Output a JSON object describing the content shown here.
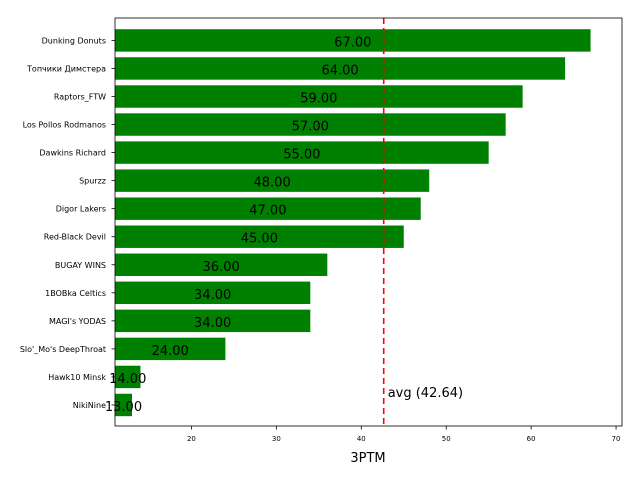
{
  "chart_data": {
    "type": "bar",
    "orientation": "horizontal",
    "title": "",
    "xlabel": "3PTM",
    "ylabel": "",
    "categories": [
      "Dunking Donuts",
      "Топчики Димстера",
      "Raptors_FTW",
      "Los Pollos Rodmanos",
      "Dawkins Richard",
      "Spurzz",
      "Digor Lakers",
      "Red-Black Devil",
      "BUGAY WINS",
      "1BOBka Celtics",
      "MAGI's YODAS",
      "Slo'_Mo's DeepThroat",
      "Hawk10 Minsk",
      "NikiNine"
    ],
    "values": [
      67,
      64,
      59,
      57,
      55,
      48,
      47,
      45,
      36,
      34,
      34,
      24,
      14,
      13
    ],
    "value_labels": [
      "67.00",
      "64.00",
      "59.00",
      "57.00",
      "55.00",
      "48.00",
      "47.00",
      "45.00",
      "36.00",
      "34.00",
      "34.00",
      "24.00",
      "14.00",
      "13.00"
    ],
    "xlim": [
      11,
      70.7
    ],
    "xticks": [
      20,
      30,
      40,
      50,
      60,
      70
    ],
    "bar_color": "#008000",
    "average": {
      "value": 42.64,
      "label": "avg (42.64)",
      "color": "#ff0000",
      "style": "dashed"
    },
    "grid": false,
    "legend": "none"
  }
}
